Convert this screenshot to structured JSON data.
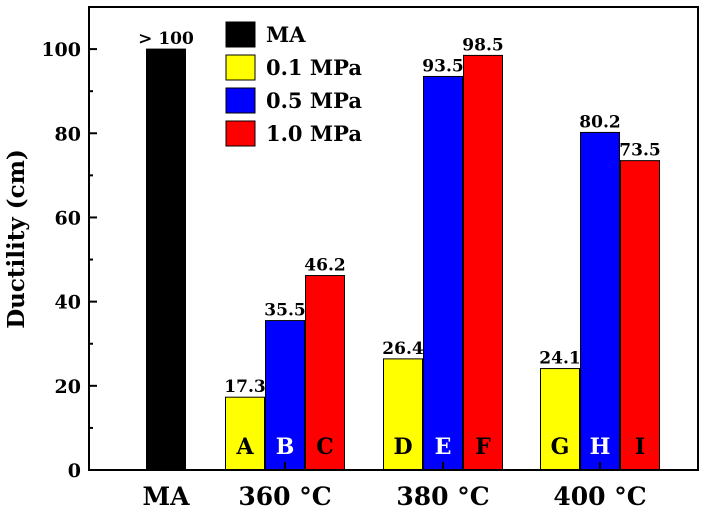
{
  "chart_data": {
    "type": "bar",
    "ylabel": "Ductility (cm)",
    "ylim": [
      0,
      110
    ],
    "yticks": [
      0,
      20,
      40,
      60,
      80,
      100
    ],
    "grid": false,
    "legend_position": "top-left",
    "categories": [
      "MA",
      "360 °C",
      "380 °C",
      "400 °C"
    ],
    "series": [
      {
        "name": "MA",
        "color": "#000000"
      },
      {
        "name": "0.1 MPa",
        "color": "#ffff00"
      },
      {
        "name": "0.5 MPa",
        "color": "#0000ff"
      },
      {
        "name": "1.0 MPa",
        "color": "#ff0000"
      }
    ],
    "bars": [
      {
        "category": 0,
        "series": 0,
        "value": 100,
        "value_label": "> 100",
        "letter": ""
      },
      {
        "category": 1,
        "series": 1,
        "value": 17.3,
        "value_label": "17.3",
        "letter": "A"
      },
      {
        "category": 1,
        "series": 2,
        "value": 35.5,
        "value_label": "35.5",
        "letter": "B"
      },
      {
        "category": 1,
        "series": 3,
        "value": 46.2,
        "value_label": "46.2",
        "letter": "C"
      },
      {
        "category": 2,
        "series": 1,
        "value": 26.4,
        "value_label": "26.4",
        "letter": "D"
      },
      {
        "category": 2,
        "series": 2,
        "value": 93.5,
        "value_label": "93.5",
        "letter": "E"
      },
      {
        "category": 2,
        "series": 3,
        "value": 98.5,
        "value_label": "98.5",
        "letter": "F"
      },
      {
        "category": 3,
        "series": 1,
        "value": 24.1,
        "value_label": "24.1",
        "letter": "G"
      },
      {
        "category": 3,
        "series": 2,
        "value": 80.2,
        "value_label": "80.2",
        "letter": "H"
      },
      {
        "category": 3,
        "series": 3,
        "value": 73.5,
        "value_label": "73.5",
        "letter": "I"
      }
    ]
  }
}
